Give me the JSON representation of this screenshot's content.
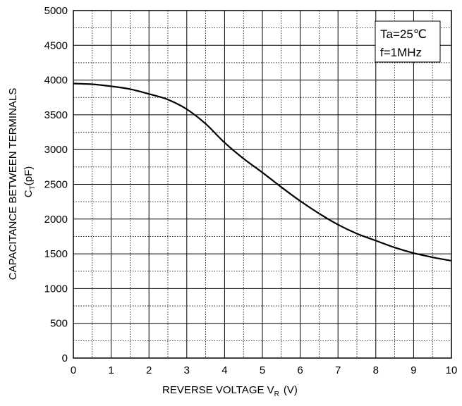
{
  "chart_data": {
    "type": "line",
    "title": "",
    "xlabel": {
      "main": "REVERSE VOLTAGE V",
      "sub": "R",
      "unit": "(V)"
    },
    "ylabel": {
      "line1": "CAPACITANCE BETWEEN TERMINALS",
      "line2_main": "C",
      "line2_sub": "T",
      "line2_unit": "(pF)"
    },
    "xlim": [
      0,
      10
    ],
    "ylim": [
      0,
      5000
    ],
    "x_ticks": [
      "0",
      "1",
      "2",
      "3",
      "4",
      "5",
      "6",
      "7",
      "8",
      "9",
      "10"
    ],
    "y_ticks": [
      "0",
      "500",
      "1000",
      "1500",
      "2000",
      "2500",
      "3000",
      "3500",
      "4000",
      "4500",
      "5000"
    ],
    "grid": true,
    "conditions": [
      "Ta=25℃",
      "f=1MHz"
    ],
    "series": [
      {
        "x": [
          0,
          0.5,
          1,
          1.5,
          2,
          2.5,
          3,
          3.5,
          4,
          4.5,
          5,
          5.5,
          6,
          6.5,
          7,
          7.5,
          8,
          8.5,
          9,
          9.5,
          10
        ],
        "y": [
          3950,
          3940,
          3910,
          3870,
          3800,
          3720,
          3580,
          3370,
          3100,
          2870,
          2670,
          2460,
          2260,
          2080,
          1920,
          1790,
          1690,
          1590,
          1510,
          1450,
          1400
        ]
      }
    ]
  }
}
